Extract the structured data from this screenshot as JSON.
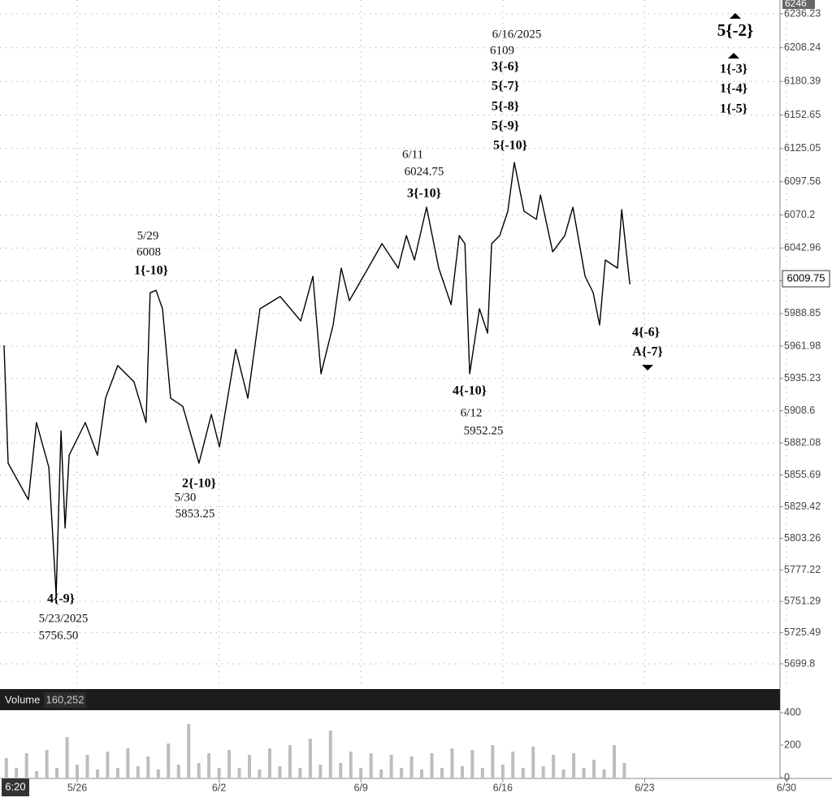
{
  "chart_data": {
    "type": "line",
    "cursor_price": "6246",
    "cursor_time": "6:20",
    "last_price": "6009.75",
    "volume_label": "Volume",
    "volume_value": "160,252",
    "xlim": [
      2.19,
      40.68
    ],
    "xticks": [
      {
        "value": 6,
        "label": "5/26"
      },
      {
        "value": 13,
        "label": "6/2"
      },
      {
        "value": 20,
        "label": "6/9"
      },
      {
        "value": 27,
        "label": "6/16"
      },
      {
        "value": 34,
        "label": "6/23"
      },
      {
        "value": 41,
        "label": "6/30"
      }
    ],
    "ylim": [
      5681.0,
      6247.6
    ],
    "yticks": [
      6236.23,
      6208.24,
      6180.39,
      6152.65,
      6125.05,
      6097.56,
      6070.2,
      6042.96,
      6015.85,
      5988.85,
      5961.98,
      5935.23,
      5908.6,
      5882.08,
      5855.69,
      5829.42,
      5803.26,
      5777.22,
      5751.29,
      5725.49,
      5699.8
    ],
    "grid": true,
    "series": [
      {
        "name": "Price",
        "color": "#000000",
        "x": [
          2.39,
          2.59,
          3.59,
          3.99,
          4.6,
          4.96,
          5.2,
          5.4,
          5.6,
          6.4,
          7.0,
          7.4,
          8.0,
          8.8,
          9.4,
          9.6,
          9.89,
          10.21,
          10.61,
          11.21,
          12.01,
          12.62,
          13.02,
          13.82,
          14.42,
          15.02,
          16.02,
          17.03,
          17.63,
          18.03,
          18.63,
          19.03,
          19.43,
          20.24,
          21.04,
          21.84,
          22.24,
          22.64,
          23.24,
          23.84,
          24.45,
          24.85,
          25.13,
          25.37,
          25.85,
          26.25,
          26.45,
          26.85,
          27.25,
          27.57,
          28.05,
          28.66,
          28.86,
          29.46,
          30.06,
          30.46,
          31.06,
          31.46,
          31.78,
          32.06,
          32.66,
          32.87,
          33.27
        ],
        "values": [
          5962.6,
          5865.4,
          5835.2,
          5898.9,
          5862,
          5756.5,
          5892,
          5811.8,
          5872,
          5898.9,
          5872,
          5919,
          5945.9,
          5932.5,
          5898.9,
          6006,
          6008,
          5992.8,
          5919,
          5912.3,
          5865.4,
          5905.6,
          5878.8,
          5959.3,
          5919,
          5992.8,
          6002.9,
          5982.8,
          6019.6,
          5939.2,
          5979.4,
          6026.3,
          5999.5,
          6023,
          6046.5,
          6026.3,
          6053.2,
          6033,
          6076.6,
          6026.3,
          5996.2,
          6053.2,
          6046.5,
          5939.2,
          5992.8,
          5972.7,
          6046.5,
          6053.2,
          6073.3,
          6113.5,
          6073.3,
          6066.6,
          6086.7,
          6039.8,
          6053.2,
          6076.6,
          6019.6,
          6006.2,
          5979.4,
          6033,
          6026.3,
          6074.6,
          6013
        ]
      }
    ],
    "volume": {
      "color": "#bdbdbd",
      "ylim": [
        0,
        535
      ],
      "yticks": [
        0,
        200,
        400
      ],
      "x": [
        2.5,
        3,
        3.5,
        4,
        4.5,
        5,
        5.5,
        6,
        6.5,
        7,
        7.5,
        8,
        8.5,
        9,
        9.5,
        10,
        10.5,
        11,
        11.5,
        12,
        12.5,
        13,
        13.5,
        14,
        14.5,
        15,
        15.5,
        16,
        16.5,
        17,
        17.5,
        18,
        18.5,
        19,
        19.5,
        20,
        20.5,
        21,
        21.5,
        22,
        22.5,
        23,
        23.5,
        24,
        24.5,
        25,
        25.5,
        26,
        26.5,
        27,
        27.5,
        28,
        28.5,
        29,
        29.5,
        30,
        30.5,
        31,
        31.5,
        32,
        32.5,
        33
      ],
      "values": [
        120,
        60,
        150,
        40,
        170,
        60,
        250,
        80,
        140,
        50,
        160,
        60,
        180,
        70,
        130,
        50,
        210,
        80,
        330,
        90,
        150,
        60,
        170,
        60,
        140,
        50,
        180,
        70,
        200,
        60,
        240,
        80,
        290,
        90,
        160,
        60,
        150,
        50,
        140,
        60,
        130,
        50,
        150,
        60,
        180,
        70,
        170,
        60,
        200,
        80,
        160,
        60,
        190,
        70,
        140,
        50,
        150,
        60,
        110,
        50,
        200,
        90
      ]
    },
    "annotations": [
      {
        "lines": [
          "4{-9}",
          "5/23/2025",
          "5756.50"
        ]
      },
      {
        "lines": [
          "2{-10}",
          "5/30",
          "5853.25"
        ]
      },
      {
        "lines": [
          "5/29",
          "6008",
          "1{-10}"
        ]
      },
      {
        "lines": [
          "6/11",
          "6024.75",
          "3{-10}"
        ]
      },
      {
        "lines": [
          "4{-10}",
          "6/12",
          "5952.25"
        ]
      },
      {
        "lines": [
          "6/16/2025",
          "6109",
          "3{-6}",
          "5{-7}",
          "5{-8}",
          "5{-9}",
          "5{-10}"
        ]
      },
      {
        "lines": [
          "5{-2}"
        ]
      },
      {
        "lines": [
          "1{-3}",
          "1{-4}",
          "1{-5}"
        ]
      },
      {
        "lines": [
          "4{-6}",
          "A{-7}"
        ]
      }
    ]
  }
}
